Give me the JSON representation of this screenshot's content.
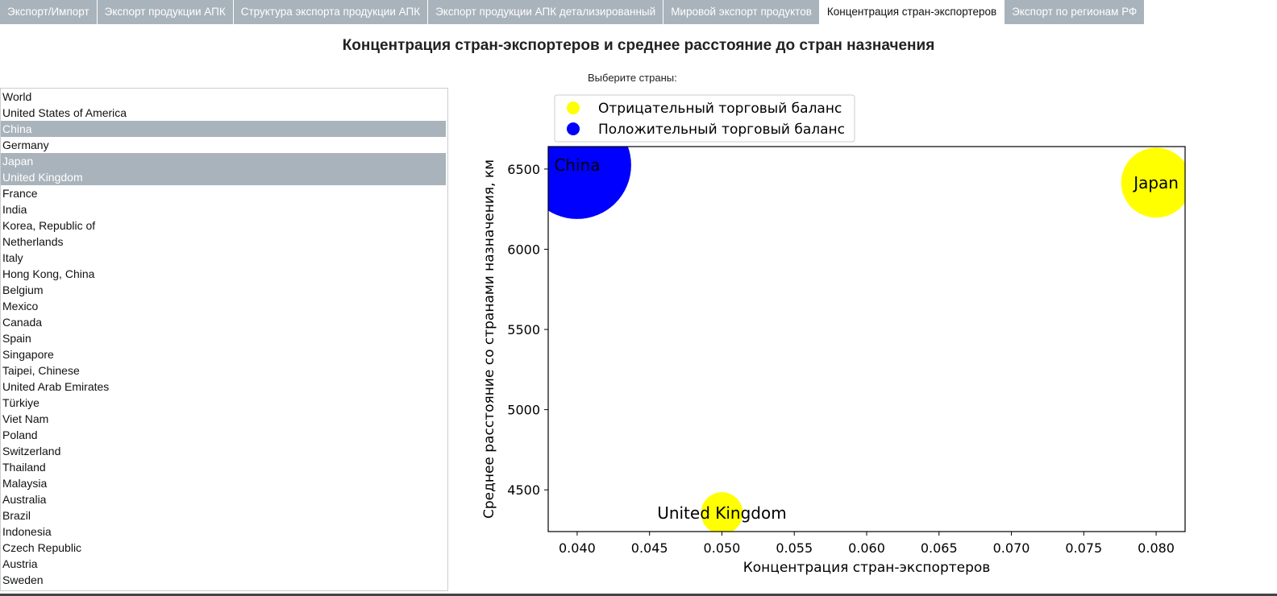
{
  "tabs": [
    {
      "label": "Экспорт/Импорт",
      "active": false
    },
    {
      "label": "Экспорт продукции АПК",
      "active": false
    },
    {
      "label": "Структура экспорта продукции АПК",
      "active": false
    },
    {
      "label": "Экспорт продукции АПК детализированный",
      "active": false
    },
    {
      "label": "Мировой экспорт продуктов",
      "active": false
    },
    {
      "label": "Концентрация стран-экспортеров",
      "active": true
    },
    {
      "label": "Экспорт по регионам РФ",
      "active": false
    }
  ],
  "page": {
    "title": "Концентрация стран-экспортеров и среднее расстояние до стран назначения",
    "select_label": "Выберите страны:"
  },
  "countries": [
    {
      "name": "World",
      "selected": false
    },
    {
      "name": "United States of America",
      "selected": false
    },
    {
      "name": "China",
      "selected": true
    },
    {
      "name": "Germany",
      "selected": false
    },
    {
      "name": "Japan",
      "selected": true
    },
    {
      "name": "United Kingdom",
      "selected": true
    },
    {
      "name": "France",
      "selected": false
    },
    {
      "name": "India",
      "selected": false
    },
    {
      "name": "Korea, Republic of",
      "selected": false
    },
    {
      "name": "Netherlands",
      "selected": false
    },
    {
      "name": "Italy",
      "selected": false
    },
    {
      "name": "Hong Kong, China",
      "selected": false
    },
    {
      "name": "Belgium",
      "selected": false
    },
    {
      "name": "Mexico",
      "selected": false
    },
    {
      "name": "Canada",
      "selected": false
    },
    {
      "name": "Spain",
      "selected": false
    },
    {
      "name": "Singapore",
      "selected": false
    },
    {
      "name": "Taipei, Chinese",
      "selected": false
    },
    {
      "name": "United Arab Emirates",
      "selected": false
    },
    {
      "name": "Türkiye",
      "selected": false
    },
    {
      "name": "Viet Nam",
      "selected": false
    },
    {
      "name": "Poland",
      "selected": false
    },
    {
      "name": "Switzerland",
      "selected": false
    },
    {
      "name": "Thailand",
      "selected": false
    },
    {
      "name": "Malaysia",
      "selected": false
    },
    {
      "name": "Australia",
      "selected": false
    },
    {
      "name": "Brazil",
      "selected": false
    },
    {
      "name": "Indonesia",
      "selected": false
    },
    {
      "name": "Czech Republic",
      "selected": false
    },
    {
      "name": "Austria",
      "selected": false
    },
    {
      "name": "Sweden",
      "selected": false
    }
  ],
  "colors": {
    "tab_inactive": "#a9b3bb",
    "selection": "#a9b3bb",
    "negative": "#ffff00",
    "positive": "#0000ff"
  },
  "chart_data": {
    "type": "scatter",
    "title": "",
    "xlabel": "Концентрация стран-экспортеров",
    "ylabel": "Среднее расстояние со странами назначения, км",
    "xlim": [
      0.038,
      0.082
    ],
    "ylim": [
      4240,
      6640
    ],
    "xticks": [
      0.04,
      0.045,
      0.05,
      0.055,
      0.06,
      0.065,
      0.07,
      0.075,
      0.08
    ],
    "xtick_labels": [
      "0.040",
      "0.045",
      "0.050",
      "0.055",
      "0.060",
      "0.065",
      "0.070",
      "0.075",
      "0.080"
    ],
    "yticks": [
      4500,
      5000,
      5500,
      6000,
      6500
    ],
    "ytick_labels": [
      "4500",
      "5000",
      "5500",
      "6000",
      "6500"
    ],
    "grid": false,
    "legend_position": "top-left",
    "legend": [
      {
        "label": "Отрицательный торговый баланс",
        "color": "#ffff00"
      },
      {
        "label": "Положительный торговый баланс",
        "color": "#0000ff"
      }
    ],
    "points": [
      {
        "label": "China",
        "x": 0.04,
        "y": 6525,
        "size": 1.0,
        "balance": "positive"
      },
      {
        "label": "Japan",
        "x": 0.08,
        "y": 6415,
        "size": 0.42,
        "balance": "negative"
      },
      {
        "label": "United Kingdom",
        "x": 0.05,
        "y": 4355,
        "size": 0.15,
        "balance": "negative"
      }
    ]
  }
}
